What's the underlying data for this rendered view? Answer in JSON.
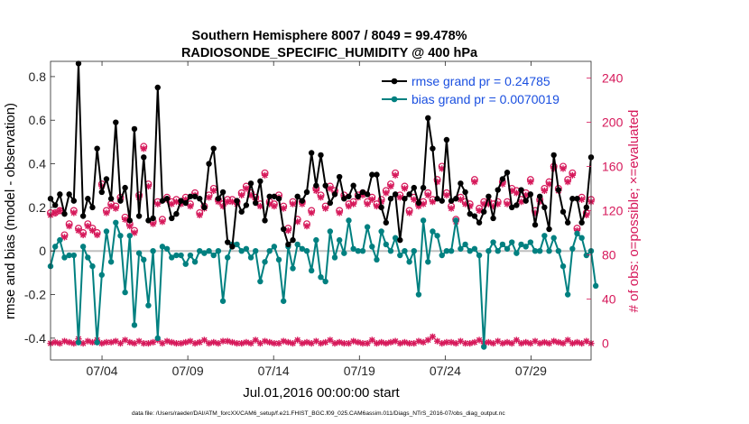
{
  "chart_data": {
    "type": "line",
    "title": [
      "Southern Hemisphere 8007 / 8049 = 99.478%",
      "RADIOSONDE_SPECIFIC_HUMIDITY @ 400 hPa"
    ],
    "xlabel": "Jul.01,2016 00:00:00 start",
    "ylabel_left": "rmse and bias (model - observation)",
    "ylabel_right": "# of obs: o=possible; ×=evaluated",
    "footnote": "data file: /Users/raeder/DAI/ATM_forcXX/CAM6_setup/f.e21.FHIST_BGC.f09_025.CAM6assim.011/Diags_NTrS_2016-07/obs_diag_output.nc",
    "x_range_days": [
      0,
      31.5
    ],
    "x_ticks": [
      {
        "day": 3,
        "label": "07/04"
      },
      {
        "day": 8,
        "label": "07/09"
      },
      {
        "day": 13,
        "label": "07/14"
      },
      {
        "day": 18,
        "label": "07/19"
      },
      {
        "day": 23,
        "label": "07/24"
      },
      {
        "day": 28,
        "label": "07/29"
      }
    ],
    "ylim_left": [
      -0.5,
      0.87
    ],
    "yticks_left": [
      {
        "v": 0.8,
        "label": "0.8"
      },
      {
        "v": 0.6,
        "label": "0.6"
      },
      {
        "v": 0.4,
        "label": "0.4"
      },
      {
        "v": 0.2,
        "label": "0.2"
      },
      {
        "v": 0,
        "label": "0"
      },
      {
        "v": -0.2,
        "label": "-0.2"
      },
      {
        "v": -0.4,
        "label": "-0.4"
      }
    ],
    "ylim_right": [
      -15,
      255
    ],
    "yticks_right": [
      {
        "v": 240,
        "label": "240"
      },
      {
        "v": 200,
        "label": "200"
      },
      {
        "v": 160,
        "label": "160"
      },
      {
        "v": 120,
        "label": "120"
      },
      {
        "v": 80,
        "label": "80"
      },
      {
        "v": 40,
        "label": "40"
      },
      {
        "v": 0,
        "label": "0"
      }
    ],
    "legend": [
      {
        "name": "rmse grand pr = 0.24785",
        "color": "#000000"
      },
      {
        "name": "bias grand pr = 0.0070019",
        "color": "#008080"
      }
    ],
    "colors": {
      "rmse": "#000000",
      "bias": "#008080",
      "obs": "#d6185a",
      "zero": "#c0c0c0"
    },
    "rmse": [
      0.24,
      0.21,
      0.26,
      0.17,
      0.26,
      0.23,
      0.86,
      0.16,
      0.24,
      0.2,
      0.47,
      0.27,
      0.33,
      0.24,
      0.59,
      0.23,
      0.29,
      0.14,
      0.56,
      0.16,
      0.43,
      0.14,
      0.15,
      0.75,
      0.23,
      0.24,
      0.15,
      0.17,
      0.23,
      0.22,
      0.25,
      0.25,
      0.24,
      0.2,
      0.4,
      0.47,
      0.24,
      0.27,
      0.04,
      0.02,
      0.23,
      0.18,
      0.21,
      0.31,
      0.22,
      0.32,
      0.14,
      0.25,
      0.25,
      0.24,
      0.1,
      0.03,
      0.05,
      0.25,
      0.23,
      0.27,
      0.45,
      0.3,
      0.44,
      0.3,
      0.22,
      0.26,
      0.34,
      0.24,
      0.25,
      0.3,
      0.25,
      0.27,
      0.26,
      0.35,
      0.35,
      0.2,
      0.13,
      0.24,
      0.26,
      0.05,
      0.24,
      0.26,
      0.29,
      0.22,
      0.29,
      0.61,
      0.47,
      0.24,
      0.23,
      0.51,
      0.23,
      0.24,
      0.31,
      0.27,
      0.17,
      0.16,
      0.13,
      0.18,
      0.25,
      0.15,
      0.28,
      0.33,
      0.36,
      0.2,
      0.21,
      0.28,
      0.23,
      0.26,
      0.12,
      0.25,
      0.2,
      0.1,
      0.44,
      0.28,
      0.18,
      0.13,
      0.24,
      0.24,
      0.13,
      0.2,
      0.43
    ],
    "bias": [
      -0.07,
      0.02,
      0.05,
      -0.03,
      -0.02,
      -0.02,
      -0.42,
      0.02,
      -0.03,
      -0.07,
      -0.42,
      -0.11,
      0.09,
      -0.05,
      0.13,
      0.07,
      -0.19,
      0.07,
      -0.34,
      -0.01,
      -0.04,
      -0.25,
      0.0,
      -0.4,
      0.02,
      0.01,
      -0.03,
      -0.02,
      -0.02,
      -0.06,
      -0.02,
      -0.05,
      0.0,
      -0.01,
      0.0,
      -0.02,
      0.0,
      -0.23,
      -0.03,
      0.03,
      0.03,
      0.0,
      0.01,
      -0.03,
      0.0,
      -0.14,
      -0.05,
      0.0,
      0.02,
      -0.04,
      -0.23,
      0.02,
      -0.08,
      0.03,
      0.01,
      0.0,
      -0.09,
      0.05,
      -0.12,
      -0.14,
      0.09,
      -0.03,
      0.05,
      -0.01,
      0.14,
      0.01,
      0.0,
      0.0,
      0.11,
      0.02,
      -0.04,
      0.09,
      0.03,
      0.0,
      0.06,
      -0.02,
      0.0,
      -0.05,
      0.0,
      -0.2,
      0.14,
      -0.05,
      0.09,
      0.07,
      -0.02,
      0.0,
      0.0,
      0.14,
      0.01,
      0.03,
      0.0,
      0.01,
      -0.02,
      -0.44,
      0.0,
      0.04,
      0.0,
      0.03,
      0.01,
      0.04,
      -0.01,
      0.03,
      0.02,
      0.04,
      0.0,
      0.0,
      0.07,
      0.0,
      0.06,
      0.0,
      -0.07,
      -0.2,
      0.01,
      0.08,
      0.06,
      -0.02,
      0.0,
      -0.16
    ],
    "obs_possible": [
      118,
      118,
      120,
      98,
      108,
      120,
      104,
      100,
      108,
      104,
      100,
      144,
      120,
      126,
      124,
      132,
      114,
      108,
      102,
      134,
      178,
      144,
      110,
      128,
      112,
      132,
      128,
      130,
      128,
      132,
      126,
      136,
      118,
      124,
      134,
      140,
      130,
      126,
      130,
      130,
      128,
      136,
      142,
      136,
      132,
      126,
      154,
      128,
      126,
      134,
      124,
      104,
      128,
      112,
      128,
      108,
      120,
      140,
      134,
      124,
      142,
      138,
      120,
      134,
      126,
      128,
      134,
      136,
      128,
      132,
      126,
      130,
      138,
      144,
      154,
      134,
      142,
      120,
      132,
      126,
      128,
      136,
      130,
      148,
      160,
      136,
      124,
      112,
      132,
      128,
      126,
      148,
      122,
      128,
      128,
      126,
      128,
      146,
      128,
      140,
      138,
      130,
      136,
      148,
      120,
      130,
      140,
      146,
      160,
      140,
      160,
      148,
      154,
      104,
      132,
      118,
      130
    ],
    "obs_evaluated": [
      116,
      118,
      120,
      96,
      106,
      118,
      102,
      98,
      106,
      102,
      98,
      142,
      118,
      124,
      122,
      130,
      112,
      106,
      100,
      132,
      176,
      142,
      108,
      126,
      110,
      130,
      126,
      128,
      126,
      130,
      124,
      134,
      116,
      122,
      132,
      138,
      128,
      124,
      128,
      128,
      126,
      134,
      140,
      134,
      130,
      124,
      152,
      126,
      124,
      132,
      122,
      102,
      126,
      110,
      126,
      106,
      118,
      138,
      132,
      122,
      140,
      136,
      118,
      132,
      124,
      126,
      132,
      134,
      126,
      130,
      124,
      128,
      136,
      142,
      152,
      132,
      140,
      118,
      130,
      124,
      126,
      134,
      128,
      146,
      158,
      134,
      122,
      110,
      130,
      126,
      124,
      146,
      120,
      126,
      126,
      124,
      126,
      144,
      126,
      138,
      136,
      128,
      134,
      146,
      118,
      128,
      138,
      144,
      158,
      138,
      158,
      146,
      152,
      102,
      130,
      116,
      128
    ],
    "obs_low": [
      0,
      1,
      0,
      2,
      1,
      0,
      4,
      0,
      2,
      1,
      3,
      0,
      1,
      1,
      2,
      0,
      3,
      1,
      0,
      2,
      0,
      0,
      1,
      3,
      0,
      2,
      1,
      0,
      0,
      1,
      2,
      0,
      1,
      3,
      0,
      1,
      0,
      2,
      2,
      1,
      0,
      0,
      1,
      0,
      3,
      0,
      2,
      1,
      0,
      0,
      2,
      1,
      0,
      3,
      0,
      1,
      0,
      2,
      0,
      1,
      3,
      0,
      1,
      0,
      0,
      2,
      1,
      0,
      0,
      3,
      0,
      1,
      0,
      1,
      2,
      0,
      1,
      0,
      0,
      2,
      1,
      3,
      6,
      2,
      0,
      1,
      1,
      0,
      2,
      0,
      0,
      1,
      3,
      0,
      1,
      0,
      2,
      0,
      1,
      0,
      3,
      0,
      1,
      0,
      2,
      0,
      1,
      0,
      2,
      1,
      0,
      3,
      0,
      1,
      0,
      2,
      0
    ]
  }
}
